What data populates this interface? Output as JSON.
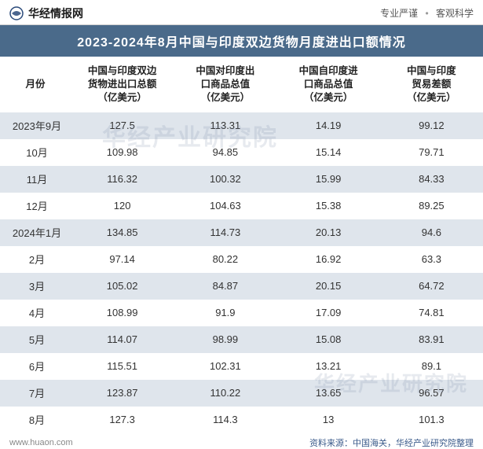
{
  "header": {
    "brand": "华经情报网",
    "tagline_left": "专业严谨",
    "tagline_right": "客观科学",
    "logo_color": "#2a4a7a"
  },
  "title": "2023-2024年8月中国与印度双边货物月度进出口额情况",
  "title_bg": "#4a6a8a",
  "title_color": "#ffffff",
  "row_odd_bg": "#dfe5ec",
  "row_even_bg": "#ffffff",
  "text_color": "#333333",
  "header_text_color": "#222222",
  "columns": [
    "月份",
    "中国与印度双边货物进出口总额（亿美元）",
    "中国对印度出口商品总值（亿美元）",
    "中国自印度进口商品总值（亿美元）",
    "中国与印度贸易差额（亿美元）"
  ],
  "rows": [
    [
      "2023年9月",
      "127.5",
      "113.31",
      "14.19",
      "99.12"
    ],
    [
      "10月",
      "109.98",
      "94.85",
      "15.14",
      "79.71"
    ],
    [
      "11月",
      "116.32",
      "100.32",
      "15.99",
      "84.33"
    ],
    [
      "12月",
      "120",
      "104.63",
      "15.38",
      "89.25"
    ],
    [
      "2024年1月",
      "134.85",
      "114.73",
      "20.13",
      "94.6"
    ],
    [
      "2月",
      "97.14",
      "80.22",
      "16.92",
      "63.3"
    ],
    [
      "3月",
      "105.02",
      "84.87",
      "20.15",
      "64.72"
    ],
    [
      "4月",
      "108.99",
      "91.9",
      "17.09",
      "74.81"
    ],
    [
      "5月",
      "114.07",
      "98.99",
      "15.08",
      "83.91"
    ],
    [
      "6月",
      "115.51",
      "102.31",
      "13.21",
      "89.1"
    ],
    [
      "7月",
      "123.87",
      "110.22",
      "13.65",
      "96.57"
    ],
    [
      "8月",
      "127.3",
      "114.3",
      "13",
      "101.3"
    ]
  ],
  "footer": {
    "left": "www.huaon.com",
    "right": "资料来源：中国海关，华经产业研究院整理"
  },
  "watermark": "华经产业研究院"
}
